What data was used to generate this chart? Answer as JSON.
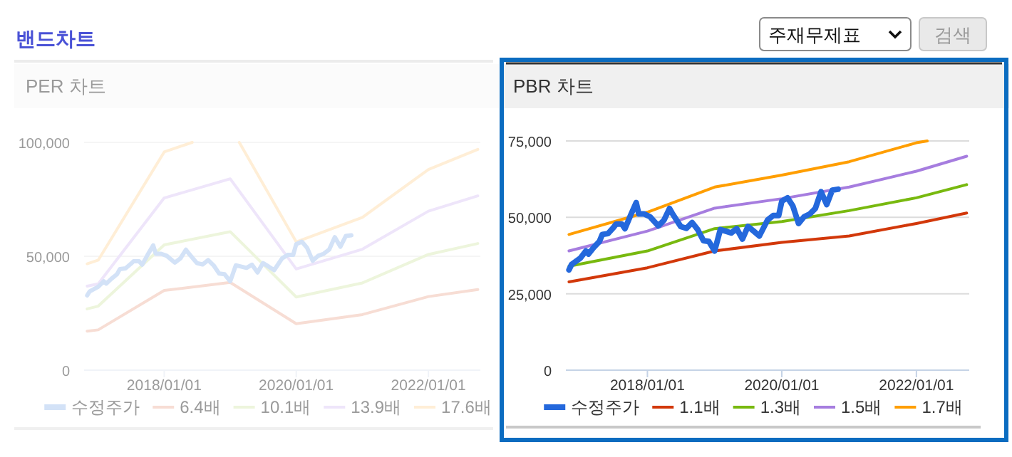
{
  "chart_data": [
    {
      "type": "line",
      "title": "PER 차트",
      "annotations": [
        "밴드차트"
      ],
      "xlim": [
        "2016-10-15",
        "2022-10-15"
      ],
      "ylim": [
        0,
        100000
      ],
      "xticks": [
        {
          "value": "2018-01-01",
          "label": "2018/01/01"
        },
        {
          "value": "2020-01-01",
          "label": "2020/01/01"
        },
        {
          "value": "2022-01-01",
          "label": "2022/01/01"
        }
      ],
      "yticks": [
        0,
        {
          "value": 50000,
          "label": "50,000"
        },
        {
          "value": 100000,
          "label": "100,000"
        }
      ],
      "grid": "y",
      "legend": "bottom",
      "marker": "none",
      "line_style": "solid",
      "series": [
        {
          "name": "수정주가",
          "color": "#d3e2f7",
          "x": [
            "2016-11-01",
            "2016-11-15",
            "2017-01-01",
            "2017-02-01",
            "2017-02-15",
            "2017-03-15",
            "2017-04-15",
            "2017-05-01",
            "2017-06-01",
            "2017-07-01",
            "2017-07-15",
            "2017-08-15",
            "2017-09-01",
            "2017-10-01",
            "2017-11-01",
            "2017-11-15",
            "2017-12-15",
            "2018-01-15",
            "2018-03-01",
            "2018-04-01",
            "2018-05-01",
            "2018-05-15",
            "2018-07-01",
            "2018-08-01",
            "2018-09-01",
            "2018-10-01",
            "2018-11-01",
            "2018-12-01",
            "2019-01-01",
            "2019-02-01",
            "2019-03-01",
            "2019-04-01",
            "2019-05-01",
            "2019-06-01",
            "2019-07-01",
            "2019-08-01",
            "2019-09-01",
            "2019-10-15",
            "2019-11-15",
            "2019-12-15",
            "2020-01-01",
            "2020-02-01",
            "2020-03-01",
            "2020-04-01",
            "2020-05-01",
            "2020-06-01",
            "2020-07-01",
            "2020-08-01",
            "2020-09-01",
            "2020-10-01",
            "2020-11-01"
          ],
          "values": [
            32800,
            34600,
            36600,
            39000,
            38000,
            40100,
            42100,
            44400,
            44700,
            46700,
            47800,
            47800,
            46300,
            50600,
            54800,
            51100,
            51100,
            50200,
            47200,
            49100,
            52900,
            51400,
            47000,
            46400,
            48300,
            46000,
            42400,
            42100,
            39000,
            46000,
            45500,
            44900,
            46300,
            42900,
            47000,
            45500,
            43900,
            49100,
            50600,
            50600,
            55300,
            56400,
            53700,
            48000,
            50200,
            51100,
            52900,
            58400,
            54200,
            58900,
            59200
          ]
        },
        {
          "name": "6.4배",
          "color": "#f7ddd4",
          "x": [
            "2016-11-01",
            "2017-01-01",
            "2018-01-01",
            "2019-01-01",
            "2020-01-01",
            "2021-01-01",
            "2022-01-01",
            "2022-10-01"
          ],
          "values": [
            17100,
            17700,
            35000,
            38500,
            20400,
            24400,
            32300,
            35400
          ]
        },
        {
          "name": "10.1배",
          "color": "#edf5dc",
          "x": [
            "2016-11-01",
            "2017-01-01",
            "2018-01-01",
            "2019-01-01",
            "2020-01-01",
            "2021-01-01",
            "2022-01-01",
            "2022-10-01"
          ],
          "values": [
            26900,
            28100,
            55000,
            60800,
            32100,
            38300,
            50800,
            55600
          ]
        },
        {
          "name": "13.9배",
          "color": "#eee5fa",
          "x": [
            "2016-11-01",
            "2017-01-01",
            "2018-01-01",
            "2019-01-01",
            "2020-01-01",
            "2021-01-01",
            "2022-01-01",
            "2022-10-01"
          ],
          "values": [
            36900,
            37900,
            75600,
            84000,
            44400,
            53100,
            69800,
            76500
          ]
        },
        {
          "name": "17.6배",
          "color": "#ffeed6",
          "x": [
            "2016-11-01",
            "2017-01-01",
            "2018-01-01",
            "2018-06-05",
            "2019-01-01",
            "2019-02-20",
            "2020-01-01",
            "2021-01-01",
            "2022-01-01",
            "2022-10-01"
          ],
          "values": [
            46700,
            48300,
            95800,
            100000,
            null,
            100000,
            56300,
            67100,
            88100,
            96900
          ]
        }
      ]
    },
    {
      "type": "line",
      "title": "PBR 차트",
      "annotations": [
        "주재무제표",
        "검색"
      ],
      "xlim": [
        "2016-10-15",
        "2022-10-15"
      ],
      "ylim": [
        0,
        75000
      ],
      "xticks": [
        {
          "value": "2018-01-01",
          "label": "2018/01/01"
        },
        {
          "value": "2020-01-01",
          "label": "2020/01/01"
        },
        {
          "value": "2022-01-01",
          "label": "2022/01/01"
        }
      ],
      "yticks": [
        0,
        {
          "value": 25000,
          "label": "25,000"
        },
        {
          "value": 50000,
          "label": "50,000"
        },
        {
          "value": 75000,
          "label": "75,000"
        }
      ],
      "grid": "y",
      "legend": "bottom",
      "marker": "none",
      "line_style": "solid",
      "series": [
        {
          "name": "수정주가",
          "color": "#2468dc",
          "x": [
            "2016-11-01",
            "2016-11-15",
            "2017-01-01",
            "2017-02-01",
            "2017-02-15",
            "2017-03-15",
            "2017-04-15",
            "2017-05-01",
            "2017-06-01",
            "2017-07-01",
            "2017-07-15",
            "2017-08-15",
            "2017-09-01",
            "2017-10-01",
            "2017-11-01",
            "2017-11-15",
            "2017-12-15",
            "2018-01-15",
            "2018-03-01",
            "2018-04-01",
            "2018-05-01",
            "2018-05-15",
            "2018-07-01",
            "2018-08-01",
            "2018-09-01",
            "2018-10-01",
            "2018-11-01",
            "2018-12-01",
            "2019-01-01",
            "2019-02-01",
            "2019-03-01",
            "2019-04-01",
            "2019-05-01",
            "2019-06-01",
            "2019-07-01",
            "2019-08-01",
            "2019-09-01",
            "2019-10-15",
            "2019-11-15",
            "2019-12-15",
            "2020-01-01",
            "2020-02-01",
            "2020-03-01",
            "2020-04-01",
            "2020-05-01",
            "2020-06-01",
            "2020-07-01",
            "2020-08-01",
            "2020-09-01",
            "2020-10-01",
            "2020-11-01"
          ],
          "values": [
            32800,
            34600,
            36600,
            39000,
            38000,
            40100,
            42100,
            44400,
            44700,
            46700,
            47800,
            47800,
            46300,
            50600,
            54800,
            51100,
            51100,
            50200,
            47200,
            49100,
            52900,
            51400,
            47000,
            46400,
            48300,
            46000,
            42400,
            42100,
            39000,
            46000,
            45500,
            44900,
            46300,
            42900,
            47000,
            45500,
            43900,
            49100,
            50600,
            50600,
            55300,
            56400,
            53700,
            48000,
            50200,
            51100,
            52900,
            58400,
            54200,
            58900,
            59200
          ]
        },
        {
          "name": "1.1배",
          "color": "#d2380a",
          "x": [
            "2016-11-01",
            "2018-01-01",
            "2019-01-01",
            "2020-01-01",
            "2021-01-01",
            "2022-01-01",
            "2022-10-01"
          ],
          "values": [
            28900,
            33500,
            39000,
            41800,
            43900,
            48000,
            51400
          ]
        },
        {
          "name": "1.3배",
          "color": "#78b90f",
          "x": [
            "2016-11-01",
            "2018-01-01",
            "2019-01-01",
            "2020-01-01",
            "2021-01-01",
            "2022-01-01",
            "2022-10-01"
          ],
          "values": [
            34000,
            39000,
            46300,
            48600,
            52200,
            56400,
            60700
          ]
        },
        {
          "name": "1.5배",
          "color": "#a67ddf",
          "x": [
            "2016-11-01",
            "2018-01-01",
            "2019-01-01",
            "2020-01-01",
            "2021-01-01",
            "2022-01-01",
            "2022-10-01"
          ],
          "values": [
            39000,
            45500,
            53000,
            56100,
            59900,
            65100,
            70000
          ]
        },
        {
          "name": "1.7배",
          "color": "#ff9e00",
          "x": [
            "2016-11-01",
            "2018-01-01",
            "2019-01-01",
            "2020-01-01",
            "2021-01-01",
            "2022-01-01",
            "2022-03-01"
          ],
          "values": [
            44400,
            51700,
            59900,
            63800,
            68200,
            74400,
            75000
          ]
        }
      ]
    }
  ]
}
